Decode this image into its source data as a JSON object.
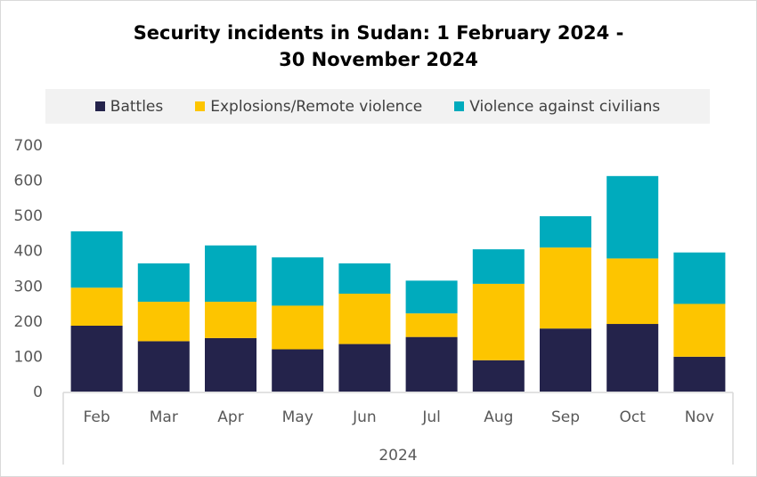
{
  "chart_data": {
    "type": "bar",
    "stacked": true,
    "title": "Security incidents in Sudan: 1 February 2024 - 30 November 2024",
    "title_lines": [
      "Security incidents in Sudan: 1 February 2024 -",
      "30 November 2024"
    ],
    "categories": [
      "Feb",
      "Mar",
      "Apr",
      "May",
      "Jun",
      "Jul",
      "Aug",
      "Sep",
      "Oct",
      "Nov"
    ],
    "group_label": "2024",
    "ylim": [
      0,
      700
    ],
    "yticks": [
      0,
      100,
      200,
      300,
      400,
      500,
      600,
      700
    ],
    "grid": false,
    "legend_position": "top",
    "series": [
      {
        "name": "Battles",
        "color": "#24234b",
        "values": [
          187,
          143,
          152,
          120,
          135,
          155,
          89,
          179,
          192,
          99
        ]
      },
      {
        "name": "Explosions/Remote violence",
        "color": "#fdc500",
        "values": [
          108,
          112,
          103,
          124,
          143,
          67,
          217,
          230,
          186,
          150
        ]
      },
      {
        "name": "Violence against civilians",
        "color": "#00abbd",
        "values": [
          160,
          109,
          160,
          137,
          86,
          93,
          98,
          89,
          234,
          146
        ]
      }
    ]
  }
}
